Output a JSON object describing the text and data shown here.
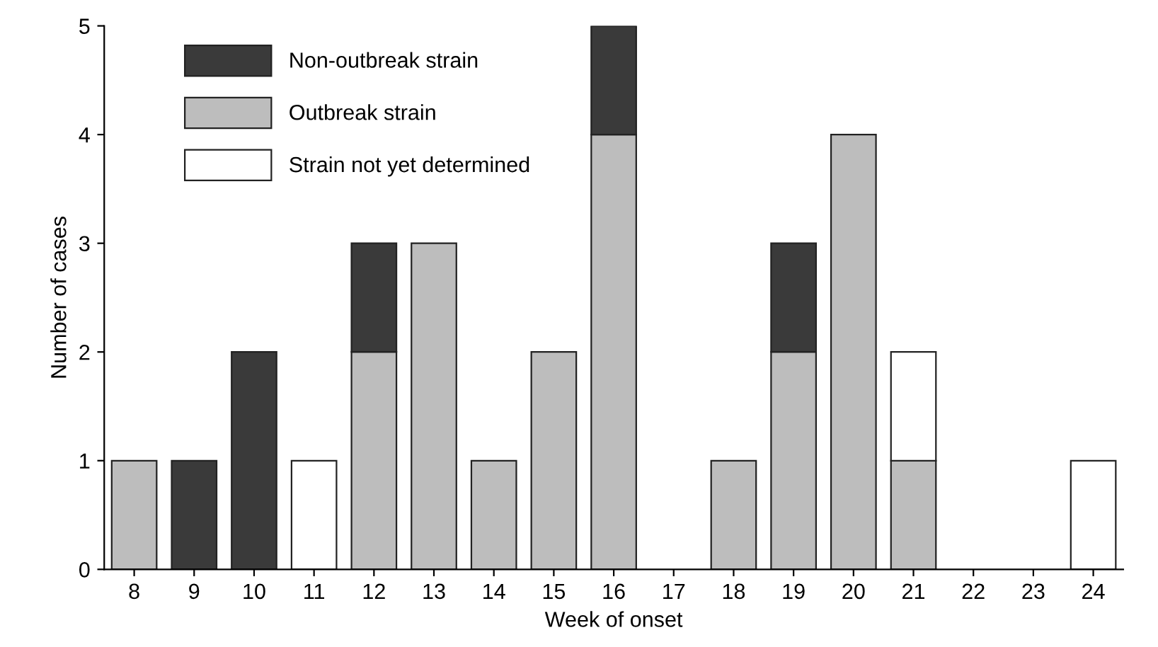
{
  "chart_data": {
    "type": "bar",
    "stacked": true,
    "xlabel": "Week of onset",
    "ylabel": "Number of cases",
    "categories": [
      "8",
      "9",
      "10",
      "11",
      "12",
      "13",
      "14",
      "15",
      "16",
      "17",
      "18",
      "19",
      "20",
      "21",
      "22",
      "23",
      "24"
    ],
    "series": [
      {
        "name": "Outbreak strain",
        "color": "#bdbdbd",
        "values": [
          1,
          null,
          null,
          null,
          2,
          3,
          1,
          2,
          4,
          null,
          1,
          2,
          4,
          1,
          null,
          null,
          null
        ]
      },
      {
        "name": "Non-outbreak strain",
        "color": "#3a3a3a",
        "values": [
          null,
          1,
          2,
          null,
          1,
          null,
          null,
          null,
          1,
          null,
          null,
          1,
          null,
          null,
          null,
          null,
          null
        ]
      },
      {
        "name": "Strain not yet determined",
        "color": "#ffffff",
        "values": [
          null,
          null,
          null,
          1,
          null,
          null,
          null,
          null,
          null,
          null,
          null,
          null,
          null,
          1,
          null,
          null,
          1
        ]
      }
    ],
    "ylim": [
      0,
      5
    ],
    "yticks": [
      0,
      1,
      2,
      3,
      4,
      5
    ],
    "grid": false,
    "legend": "top left"
  }
}
